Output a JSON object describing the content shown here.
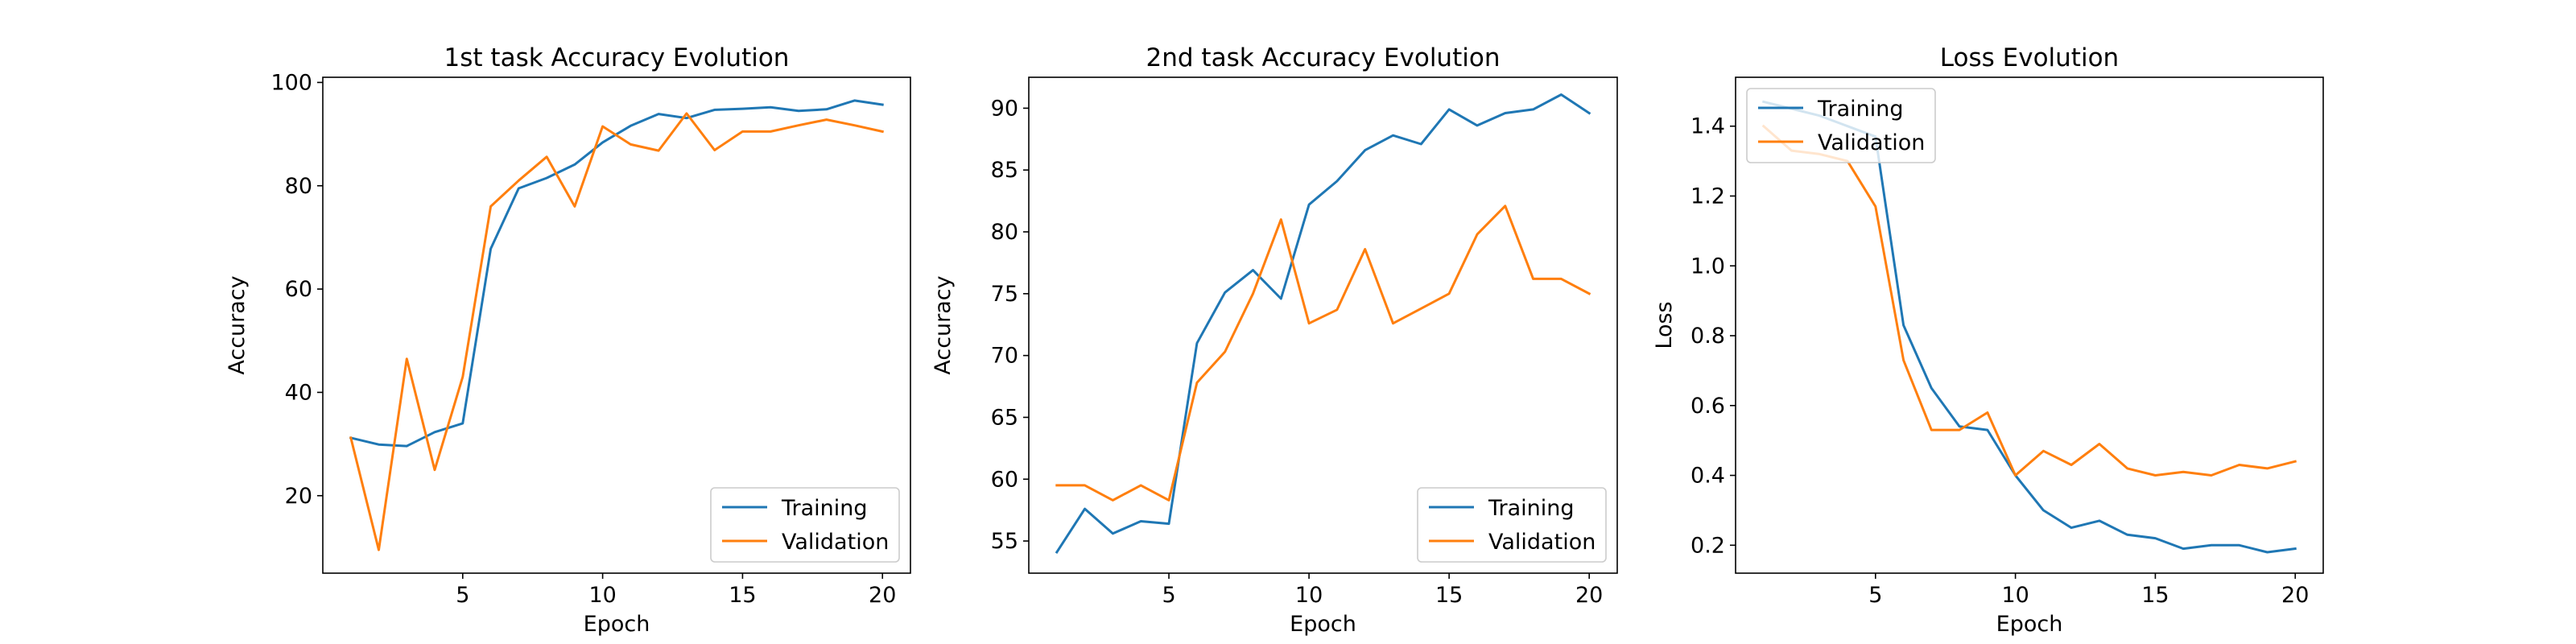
{
  "chart_data": [
    {
      "type": "line",
      "title": "1st task Accuracy Evolution",
      "xlabel": "Epoch",
      "ylabel": "Accuracy",
      "xlim": [
        0,
        21
      ],
      "ylim": [
        5,
        101
      ],
      "xticks": [
        5,
        10,
        15,
        20
      ],
      "yticks": [
        20,
        40,
        60,
        80,
        100
      ],
      "legend": "lower right",
      "x": [
        1,
        2,
        3,
        4,
        5,
        6,
        7,
        8,
        9,
        10,
        11,
        12,
        13,
        14,
        15,
        16,
        17,
        18,
        19,
        20
      ],
      "series": [
        {
          "name": "Training",
          "color": "#1f77b4",
          "values": [
            31.2,
            29.9,
            29.6,
            32.3,
            34.0,
            67.8,
            79.5,
            81.5,
            84.1,
            88.4,
            91.6,
            93.9,
            93.1,
            94.7,
            94.9,
            95.2,
            94.5,
            94.8,
            96.5,
            95.7
          ]
        },
        {
          "name": "Validation",
          "color": "#ff7f0e",
          "values": [
            31.2,
            9.5,
            46.5,
            25.0,
            43.0,
            76.0,
            81.0,
            85.6,
            76.0,
            91.5,
            88.0,
            86.8,
            94.0,
            86.9,
            90.5,
            90.5,
            91.7,
            92.8,
            91.7,
            90.5
          ]
        }
      ]
    },
    {
      "type": "line",
      "title": "2nd task Accuracy Evolution",
      "xlabel": "Epoch",
      "ylabel": "Accuracy",
      "xlim": [
        0,
        21
      ],
      "ylim": [
        52.4,
        92.5
      ],
      "xticks": [
        5,
        10,
        15,
        20
      ],
      "yticks": [
        55,
        60,
        65,
        70,
        75,
        80,
        85,
        90
      ],
      "legend": "lower right",
      "x": [
        1,
        2,
        3,
        4,
        5,
        6,
        7,
        8,
        9,
        10,
        11,
        12,
        13,
        14,
        15,
        16,
        17,
        18,
        19,
        20
      ],
      "series": [
        {
          "name": "Training",
          "color": "#1f77b4",
          "values": [
            54.1,
            57.6,
            55.6,
            56.6,
            56.4,
            71.0,
            75.1,
            76.9,
            74.6,
            82.2,
            84.1,
            86.6,
            87.8,
            87.1,
            89.9,
            88.6,
            89.6,
            89.9,
            91.1,
            89.6
          ]
        },
        {
          "name": "Validation",
          "color": "#ff7f0e",
          "values": [
            59.5,
            59.5,
            58.3,
            59.5,
            58.3,
            67.8,
            70.3,
            75.0,
            81.0,
            72.6,
            73.7,
            78.6,
            72.6,
            73.8,
            75.0,
            79.8,
            82.1,
            76.2,
            76.2,
            75.0
          ]
        }
      ]
    },
    {
      "type": "line",
      "title": "Loss Evolution",
      "xlabel": "Epoch",
      "ylabel": "Loss",
      "xlim": [
        0,
        21
      ],
      "ylim": [
        0.12,
        1.54
      ],
      "xticks": [
        5,
        10,
        15,
        20
      ],
      "yticks": [
        0.2,
        0.4,
        0.6,
        0.8,
        1.0,
        1.2,
        1.4
      ],
      "ytick_labels": [
        "0.2",
        "0.4",
        "0.6",
        "0.8",
        "1.0",
        "1.2",
        "1.4"
      ],
      "legend": "upper left",
      "x": [
        1,
        2,
        3,
        4,
        5,
        6,
        7,
        8,
        9,
        10,
        11,
        12,
        13,
        14,
        15,
        16,
        17,
        18,
        19,
        20
      ],
      "series": [
        {
          "name": "Training",
          "color": "#1f77b4",
          "values": [
            1.47,
            1.45,
            1.43,
            1.4,
            1.37,
            0.83,
            0.65,
            0.54,
            0.53,
            0.4,
            0.3,
            0.25,
            0.27,
            0.23,
            0.22,
            0.19,
            0.2,
            0.2,
            0.18,
            0.19
          ]
        },
        {
          "name": "Validation",
          "color": "#ff7f0e",
          "values": [
            1.4,
            1.33,
            1.32,
            1.3,
            1.17,
            0.73,
            0.53,
            0.53,
            0.58,
            0.4,
            0.47,
            0.43,
            0.49,
            0.42,
            0.4,
            0.41,
            0.4,
            0.43,
            0.42,
            0.44
          ]
        }
      ]
    }
  ]
}
